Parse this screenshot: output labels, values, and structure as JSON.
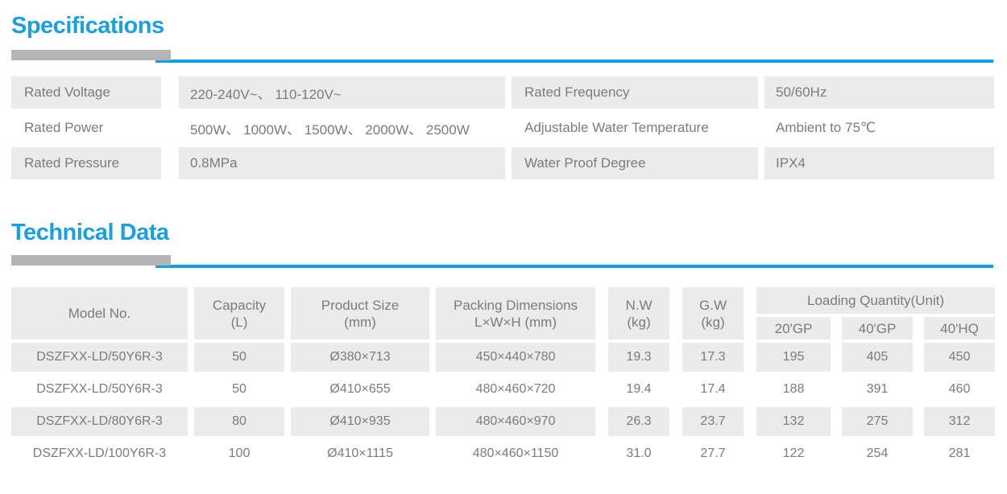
{
  "colors": {
    "heading_blue": "#18a0e2",
    "divider_blue": "#149fe2",
    "divider_gray": "#b4b4b4",
    "cell_gray": "#ebebeb",
    "text_gray": "#7b7b7b"
  },
  "specifications": {
    "title": "Specifications",
    "rows": [
      {
        "label1": "Rated Voltage",
        "value1": "220-240V~、 110-120V~",
        "label2": "Rated Frequency",
        "value2": "50/60Hz"
      },
      {
        "label1": "Rated Power",
        "value1": "500W、 1000W、 1500W、 2000W、 2500W",
        "label2": "Adjustable Water Temperature",
        "value2": "Ambient to 75℃"
      },
      {
        "label1": "Rated Pressure",
        "value1": "0.8MPa",
        "label2": "Water Proof Degree",
        "value2": "IPX4"
      }
    ]
  },
  "technical_data": {
    "title": "Technical Data",
    "headers": {
      "model": "Model No.",
      "capacity_l1": "Capacity",
      "capacity_l2": "(L)",
      "product_l1": "Product Size",
      "product_l2": "(mm)",
      "packing_l1": "Packing Dimensions",
      "packing_l2": "L×W×H (mm)",
      "nw_l1": "N.W",
      "nw_l2": "(kg)",
      "gw_l1": "G.W",
      "gw_l2": "(kg)",
      "loading": "Loading Quantity(Unit)",
      "sub": [
        "20'GP",
        "40'GP",
        "40'HQ"
      ]
    },
    "rows": [
      [
        "DSZFXX-LD/50Y6R-3",
        "50",
        "Ø380×713",
        "450×440×780",
        "19.3",
        "17.3",
        "195",
        "405",
        "450"
      ],
      [
        "DSZFXX-LD/50Y6R-3",
        "50",
        "Ø410×655",
        "480×460×720",
        "19.4",
        "17.4",
        "188",
        "391",
        "460"
      ],
      [
        "DSZFXX-LD/80Y6R-3",
        "80",
        "Ø410×935",
        "480×460×970",
        "26.3",
        "23.7",
        "132",
        "275",
        "312"
      ],
      [
        "DSZFXX-LD/100Y6R-3",
        "100",
        "Ø410×1115",
        "480×460×1150",
        "31.0",
        "27.7",
        "122",
        "254",
        "281"
      ]
    ]
  }
}
